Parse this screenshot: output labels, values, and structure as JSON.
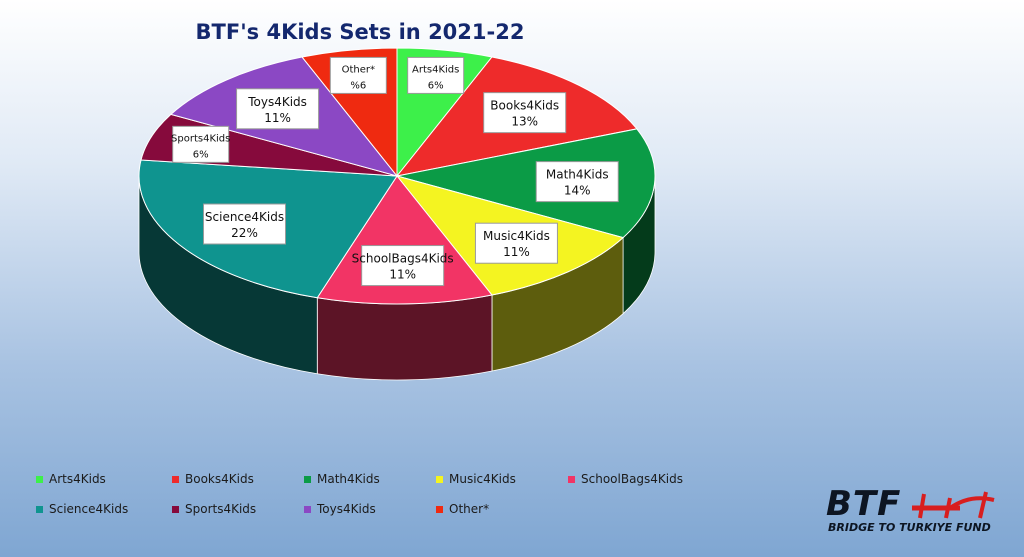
{
  "chart_data": {
    "type": "pie",
    "title": "BTF's 4Kids Sets in 2021-22",
    "slices": [
      {
        "name": "Arts4Kids",
        "value": 6,
        "label": "6%",
        "color": "#3df04a"
      },
      {
        "name": "Books4Kids",
        "value": 13,
        "label": "13%",
        "color": "#ee2b2b"
      },
      {
        "name": "Math4Kids",
        "value": 14,
        "label": "14%",
        "color": "#0b9b46"
      },
      {
        "name": "Music4Kids",
        "value": 11,
        "label": "11%",
        "color": "#f4f421"
      },
      {
        "name": "SchoolBags4Kids",
        "value": 11,
        "label": "11%",
        "color": "#f23465"
      },
      {
        "name": "Science4Kids",
        "value": 22,
        "label": "22%",
        "color": "#0f948f"
      },
      {
        "name": "Sports4Kids",
        "value": 6,
        "label": "6%",
        "color": "#860a3c"
      },
      {
        "name": "Toys4Kids",
        "value": 11,
        "label": "11%",
        "color": "#8b48c4"
      },
      {
        "name": "Other*",
        "value": 6,
        "label": "%6",
        "color": "#ef2a10"
      }
    ],
    "legend_position": "bottom"
  },
  "logo": {
    "text": "BTF",
    "subtitle": "BRIDGE TO TURKIYE FUND"
  }
}
